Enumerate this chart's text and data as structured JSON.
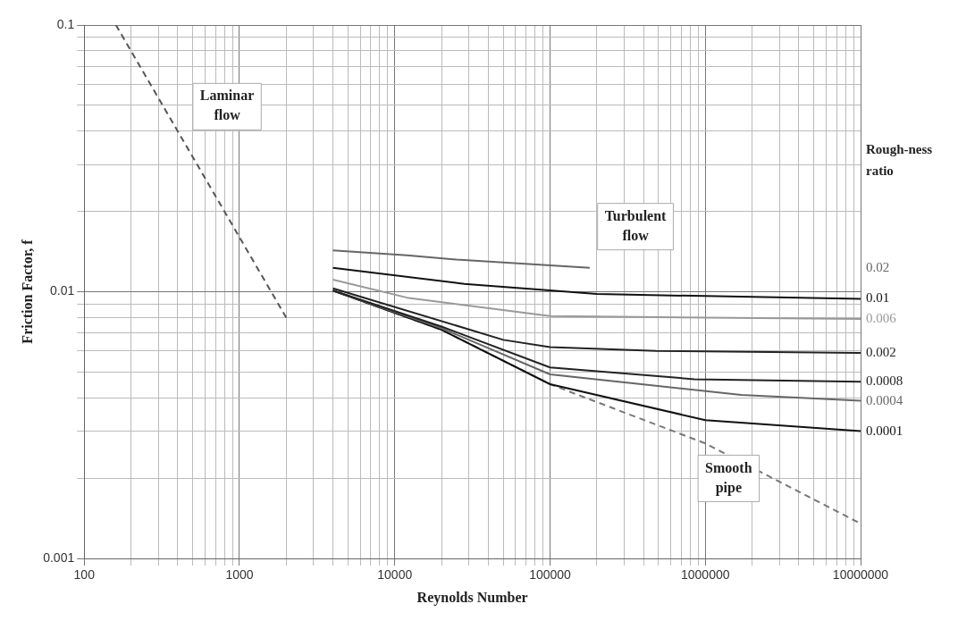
{
  "chart_data": {
    "type": "line",
    "xlabel": "Reynolds Number",
    "ylabel": "Friction Factor, f",
    "legend_title": "Rough-ness ratio",
    "log": "xy",
    "grid": true,
    "marker": "none",
    "xlim": [
      100,
      10000000
    ],
    "ylim": [
      0.001,
      0.1
    ],
    "xticks": [
      100,
      {
        "value": 200,
        "label": null
      },
      {
        "value": 300,
        "label": null
      },
      {
        "value": 400,
        "label": null
      },
      {
        "value": 500,
        "label": null
      },
      {
        "value": 600,
        "label": null
      },
      {
        "value": 700,
        "label": null
      },
      {
        "value": 800,
        "label": null
      },
      {
        "value": 900,
        "label": null
      },
      1000,
      {
        "value": 2000,
        "label": null
      },
      {
        "value": 3000,
        "label": null
      },
      {
        "value": 4000,
        "label": null
      },
      {
        "value": 5000,
        "label": null
      },
      {
        "value": 6000,
        "label": null
      },
      {
        "value": 7000,
        "label": null
      },
      {
        "value": 8000,
        "label": null
      },
      {
        "value": 9000,
        "label": null
      },
      10000,
      {
        "value": 20000,
        "label": null
      },
      {
        "value": 30000,
        "label": null
      },
      {
        "value": 40000,
        "label": null
      },
      {
        "value": 50000,
        "label": null
      },
      {
        "value": 60000,
        "label": null
      },
      {
        "value": 70000,
        "label": null
      },
      {
        "value": 80000,
        "label": null
      },
      {
        "value": 90000,
        "label": null
      },
      100000,
      {
        "value": 200000,
        "label": null
      },
      {
        "value": 300000,
        "label": null
      },
      {
        "value": 400000,
        "label": null
      },
      {
        "value": 500000,
        "label": null
      },
      {
        "value": 600000,
        "label": null
      },
      {
        "value": 700000,
        "label": null
      },
      {
        "value": 800000,
        "label": null
      },
      {
        "value": 900000,
        "label": null
      },
      1000000,
      {
        "value": 2000000,
        "label": null
      },
      {
        "value": 3000000,
        "label": null
      },
      {
        "value": 4000000,
        "label": null
      },
      {
        "value": 5000000,
        "label": null
      },
      {
        "value": 6000000,
        "label": null
      },
      {
        "value": 7000000,
        "label": null
      },
      {
        "value": 8000000,
        "label": null
      },
      {
        "value": 9000000,
        "label": null
      },
      10000000
    ],
    "yticks": [
      0.001,
      {
        "value": 0.002,
        "label": null
      },
      {
        "value": 0.003,
        "label": null
      },
      {
        "value": 0.004,
        "label": null
      },
      {
        "value": 0.005,
        "label": null
      },
      {
        "value": 0.006,
        "label": null
      },
      {
        "value": 0.007,
        "label": null
      },
      {
        "value": 0.008,
        "label": null
      },
      {
        "value": 0.009,
        "label": null
      },
      0.01,
      {
        "value": 0.02,
        "label": null
      },
      {
        "value": 0.03,
        "label": null
      },
      {
        "value": 0.04,
        "label": null
      },
      {
        "value": 0.05,
        "label": null
      },
      {
        "value": 0.06,
        "label": null
      },
      {
        "value": 0.07,
        "label": null
      },
      {
        "value": 0.08,
        "label": null
      },
      {
        "value": 0.09,
        "label": null
      },
      0.1
    ],
    "series": [
      {
        "color": "#555555",
        "line_style": "dashed",
        "x": [
          160,
          2000
        ],
        "values": [
          0.1,
          0.008
        ]
      },
      {
        "name": "0.02",
        "color": "#666666",
        "x": [
          4000,
          12000,
          25000,
          180000
        ],
        "values": [
          0.0143,
          0.0137,
          0.0132,
          0.0123
        ]
      },
      {
        "name": "0.01",
        "color": "#111111",
        "x": [
          4000,
          28000,
          200000,
          10000000
        ],
        "values": [
          0.0123,
          0.0107,
          0.0098,
          0.0094
        ]
      },
      {
        "name": "0.006",
        "color": "#999999",
        "x": [
          4000,
          12000,
          100000,
          10000000
        ],
        "values": [
          0.0111,
          0.0095,
          0.0081,
          0.0079
        ]
      },
      {
        "name": "0.002",
        "color": "#222222",
        "x": [
          4000,
          50000,
          100000,
          480000,
          10000000
        ],
        "values": [
          0.0103,
          0.0066,
          0.0062,
          0.006,
          0.0059
        ]
      },
      {
        "name": "0.0008",
        "color": "#222222",
        "x": [
          4000,
          20000,
          100000,
          850000,
          10000000
        ],
        "values": [
          0.0101,
          0.0074,
          0.0052,
          0.0047,
          0.0046
        ]
      },
      {
        "name": "0.0004",
        "color": "#666666",
        "x": [
          4000,
          20000,
          100000,
          1700000,
          10000000
        ],
        "values": [
          0.0101,
          0.0073,
          0.0049,
          0.0041,
          0.0039
        ]
      },
      {
        "name": "0.0001",
        "color": "#111111",
        "x": [
          4000,
          20000,
          100000,
          1000000,
          10000000
        ],
        "values": [
          0.0101,
          0.0072,
          0.0045,
          0.0033,
          0.003
        ]
      },
      {
        "color": "#777777",
        "line_style": "dashed",
        "x": [
          4000,
          20000,
          100000,
          1000000,
          10000000
        ],
        "values": [
          0.0101,
          0.0072,
          0.0045,
          0.0027,
          0.00135
        ]
      }
    ],
    "annotations": [
      "Laminar flow",
      "Turbulent flow",
      "Smooth pipe"
    ]
  }
}
